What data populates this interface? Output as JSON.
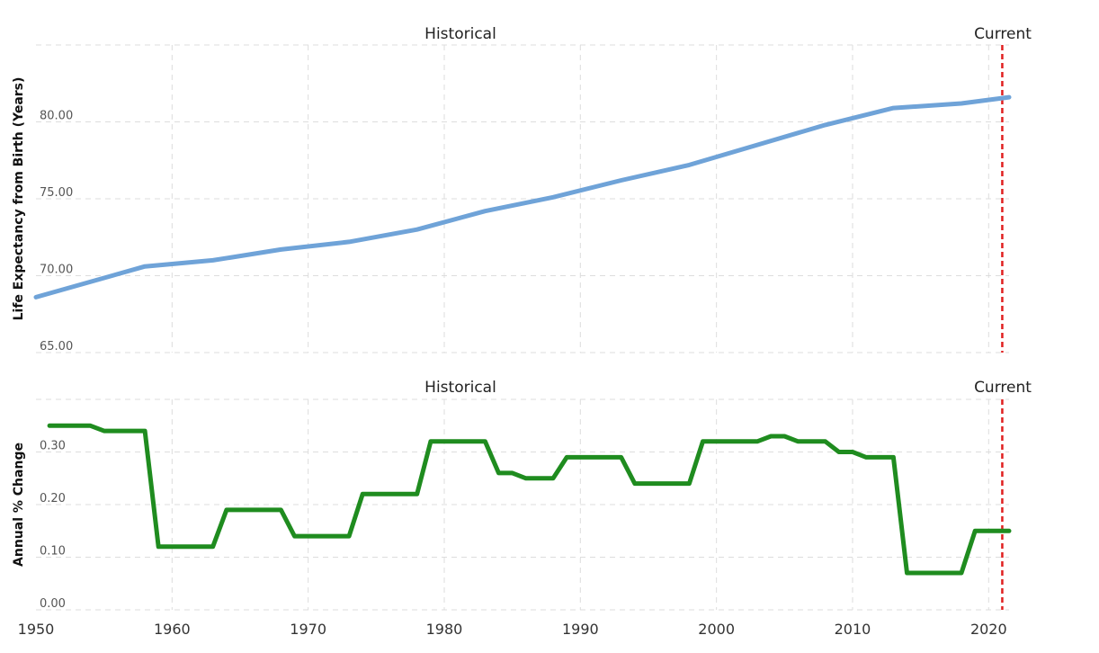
{
  "chart_data": [
    {
      "type": "line",
      "title": "",
      "xlabel": "",
      "ylabel": "Life Expectancy from Birth (Years)",
      "zones": {
        "historical": "Historical",
        "current": "Current"
      },
      "current_x": 2021,
      "xlim": [
        1950,
        2021.5
      ],
      "ylim": [
        65,
        85
      ],
      "yticks": [
        65,
        70,
        75,
        80
      ],
      "ytick_labels": [
        "65.00",
        "70.00",
        "75.00",
        "80.00"
      ],
      "grid": true,
      "color": "#6fa3d8",
      "series": [
        {
          "x": [
            1950,
            1958,
            1963,
            1968,
            1973,
            1978,
            1983,
            1988,
            1993,
            1998,
            2003,
            2008,
            2013,
            2018,
            2021.5
          ],
          "values": [
            68.6,
            70.6,
            71.0,
            71.7,
            72.2,
            73.0,
            74.2,
            75.1,
            76.2,
            77.2,
            78.5,
            79.8,
            80.9,
            81.2,
            81.6
          ]
        }
      ]
    },
    {
      "type": "line",
      "title": "",
      "xlabel": "",
      "ylabel": "Annual % Change",
      "zones": {
        "historical": "Historical",
        "current": "Current"
      },
      "current_x": 2021,
      "xlim": [
        1950,
        2021.5
      ],
      "ylim": [
        0,
        0.4
      ],
      "yticks": [
        0,
        0.1,
        0.2,
        0.3
      ],
      "ytick_labels": [
        "0.00",
        "0.10",
        "0.20",
        "0.30"
      ],
      "xticks": [
        1950,
        1960,
        1970,
        1980,
        1990,
        2000,
        2010,
        2020
      ],
      "xtick_labels": [
        "1950",
        "1960",
        "1970",
        "1980",
        "1990",
        "2000",
        "2010",
        "2020"
      ],
      "grid": true,
      "color": "#1f8c1f",
      "series": [
        {
          "x": [
            1951,
            1954,
            1955,
            1958,
            1959,
            1963,
            1964,
            1968,
            1969,
            1973,
            1974,
            1978,
            1979,
            1983,
            1984,
            1985,
            1986,
            1988,
            1989,
            1993,
            1994,
            1998,
            1999,
            2003,
            2004,
            2005,
            2006,
            2008,
            2009,
            2010,
            2011,
            2013,
            2014,
            2018,
            2019,
            2021.5
          ],
          "values": [
            0.35,
            0.35,
            0.34,
            0.34,
            0.12,
            0.12,
            0.19,
            0.19,
            0.14,
            0.14,
            0.22,
            0.22,
            0.32,
            0.32,
            0.26,
            0.26,
            0.25,
            0.25,
            0.29,
            0.29,
            0.24,
            0.24,
            0.32,
            0.32,
            0.33,
            0.33,
            0.32,
            0.32,
            0.3,
            0.3,
            0.29,
            0.29,
            0.07,
            0.07,
            0.15,
            0.15
          ]
        }
      ]
    }
  ]
}
